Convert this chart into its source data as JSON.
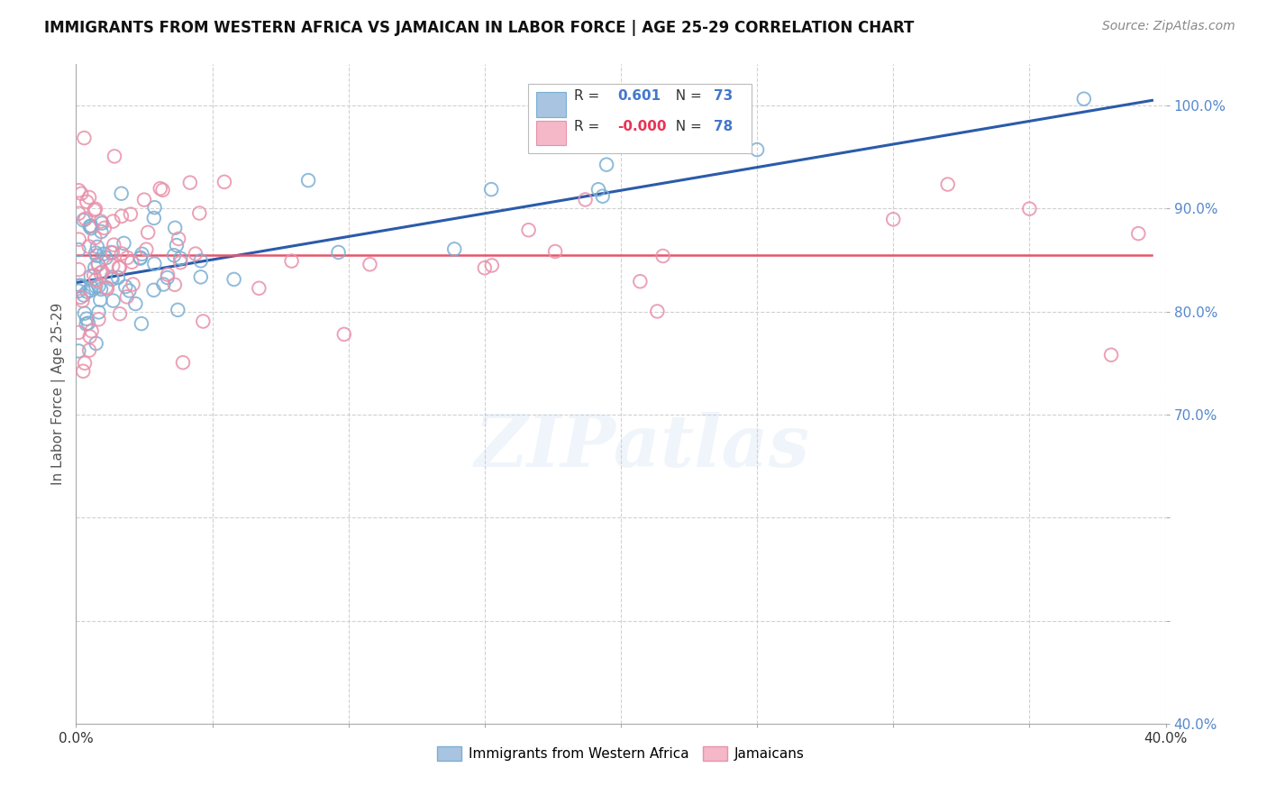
{
  "title": "IMMIGRANTS FROM WESTERN AFRICA VS JAMAICAN IN LABOR FORCE | AGE 25-29 CORRELATION CHART",
  "source": "Source: ZipAtlas.com",
  "ylabel": "In Labor Force | Age 25-29",
  "x_min": 0.0,
  "x_max": 0.4,
  "y_min": 0.4,
  "y_max": 1.04,
  "x_ticks": [
    0.0,
    0.05,
    0.1,
    0.15,
    0.2,
    0.25,
    0.3,
    0.35,
    0.4
  ],
  "x_tick_labels_show": [
    "0.0%",
    "",
    "",
    "",
    "",
    "",
    "",
    "",
    "40.0%"
  ],
  "y_ticks": [
    0.4,
    0.5,
    0.6,
    0.7,
    0.8,
    0.9,
    1.0
  ],
  "y_tick_labels": [
    "40.0%",
    "",
    "",
    "70.0%",
    "80.0%",
    "90.0%",
    "100.0%"
  ],
  "blue_R": "0.601",
  "blue_N": "73",
  "pink_R": "-0.000",
  "pink_N": "78",
  "blue_scatter_color": "#A8C4E0",
  "blue_edge_color": "#7BAFD4",
  "pink_scatter_color": "#F4B8C8",
  "pink_edge_color": "#E891AA",
  "blue_line_color": "#2B5BAA",
  "pink_line_color": "#E8556A",
  "grid_color": "#CCCCCC",
  "background_color": "#FFFFFF",
  "watermark_text": "ZIPatlas",
  "legend_blue_label": "Immigrants from Western Africa",
  "legend_pink_label": "Jamaicans",
  "blue_line_x": [
    0.0,
    0.395
  ],
  "blue_line_y": [
    0.828,
    1.005
  ],
  "pink_line_y": 0.855,
  "title_fontsize": 12,
  "source_fontsize": 10,
  "tick_label_color_x": "#333333",
  "tick_label_color_y": "#5588CC"
}
